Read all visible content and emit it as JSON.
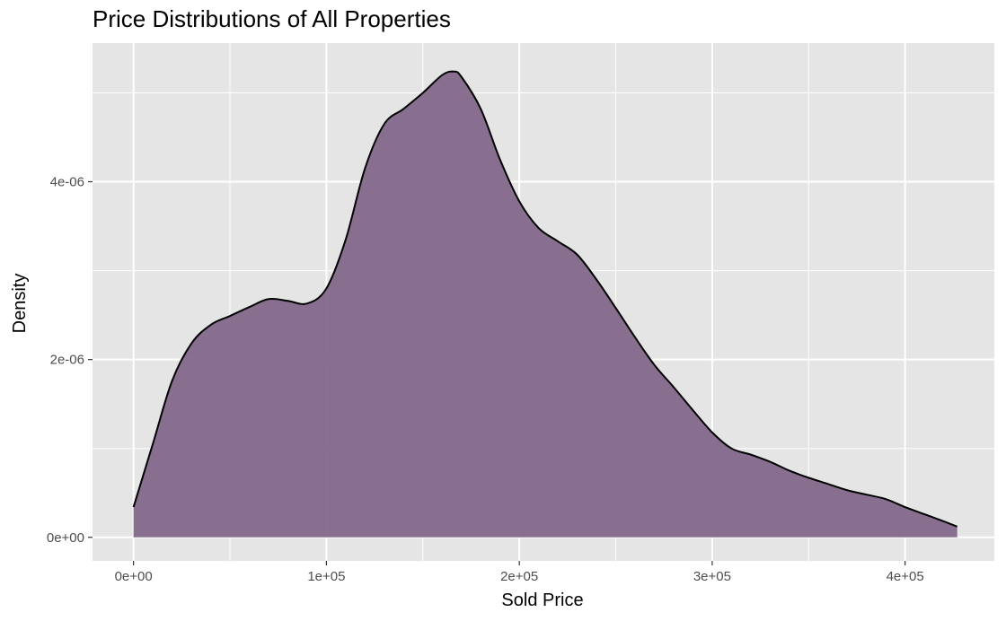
{
  "chart_data": {
    "type": "area",
    "title": "Price Distributions of All Properties",
    "xlabel": "Sold Price",
    "ylabel": "Density",
    "xlim": [
      -21250,
      446250
    ],
    "ylim": [
      -2.65e-07,
      5.56e-06
    ],
    "x_ticks": [
      0,
      100000,
      200000,
      300000,
      400000
    ],
    "x_tick_labels": [
      "0e+00",
      "1e+05",
      "2e+05",
      "3e+05",
      "4e+05"
    ],
    "y_ticks": [
      0,
      2e-06,
      4e-06
    ],
    "y_tick_labels": [
      "0e+00",
      "2e-06",
      "4e-06"
    ],
    "grid": true,
    "legend": "none",
    "colors": {
      "fill": "#846a8d",
      "line": "#000000",
      "panel": "#e5e5e5",
      "grid": "#ffffff"
    },
    "series": [
      {
        "x": [
          0,
          10000,
          20000,
          30000,
          40000,
          50000,
          60000,
          70000,
          80000,
          90000,
          100000,
          110000,
          120000,
          130000,
          140000,
          150000,
          160000,
          166000,
          170000,
          180000,
          190000,
          200000,
          210000,
          220000,
          230000,
          240000,
          250000,
          260000,
          270000,
          280000,
          290000,
          300000,
          310000,
          320000,
          330000,
          340000,
          350000,
          360000,
          370000,
          380000,
          390000,
          400000,
          410000,
          420000,
          427000
        ],
        "y": [
          3.4e-07,
          1.05e-06,
          1.76e-06,
          2.18e-06,
          2.39e-06,
          2.49e-06,
          2.59e-06,
          2.68e-06,
          2.66e-06,
          2.63e-06,
          2.8e-06,
          3.35e-06,
          4.15e-06,
          4.65e-06,
          4.82e-06,
          5e-06,
          5.2e-06,
          5.24e-06,
          5.18e-06,
          4.82e-06,
          4.25e-06,
          3.78e-06,
          3.48e-06,
          3.33e-06,
          3.18e-06,
          2.9e-06,
          2.58e-06,
          2.25e-06,
          1.94e-06,
          1.69e-06,
          1.43e-06,
          1.18e-06,
          1e-06,
          9.3e-07,
          8.5e-07,
          7.5e-07,
          6.7e-07,
          6e-07,
          5.3e-07,
          4.8e-07,
          4.3e-07,
          3.4e-07,
          2.6e-07,
          1.8e-07,
          1.2e-07
        ]
      }
    ]
  }
}
